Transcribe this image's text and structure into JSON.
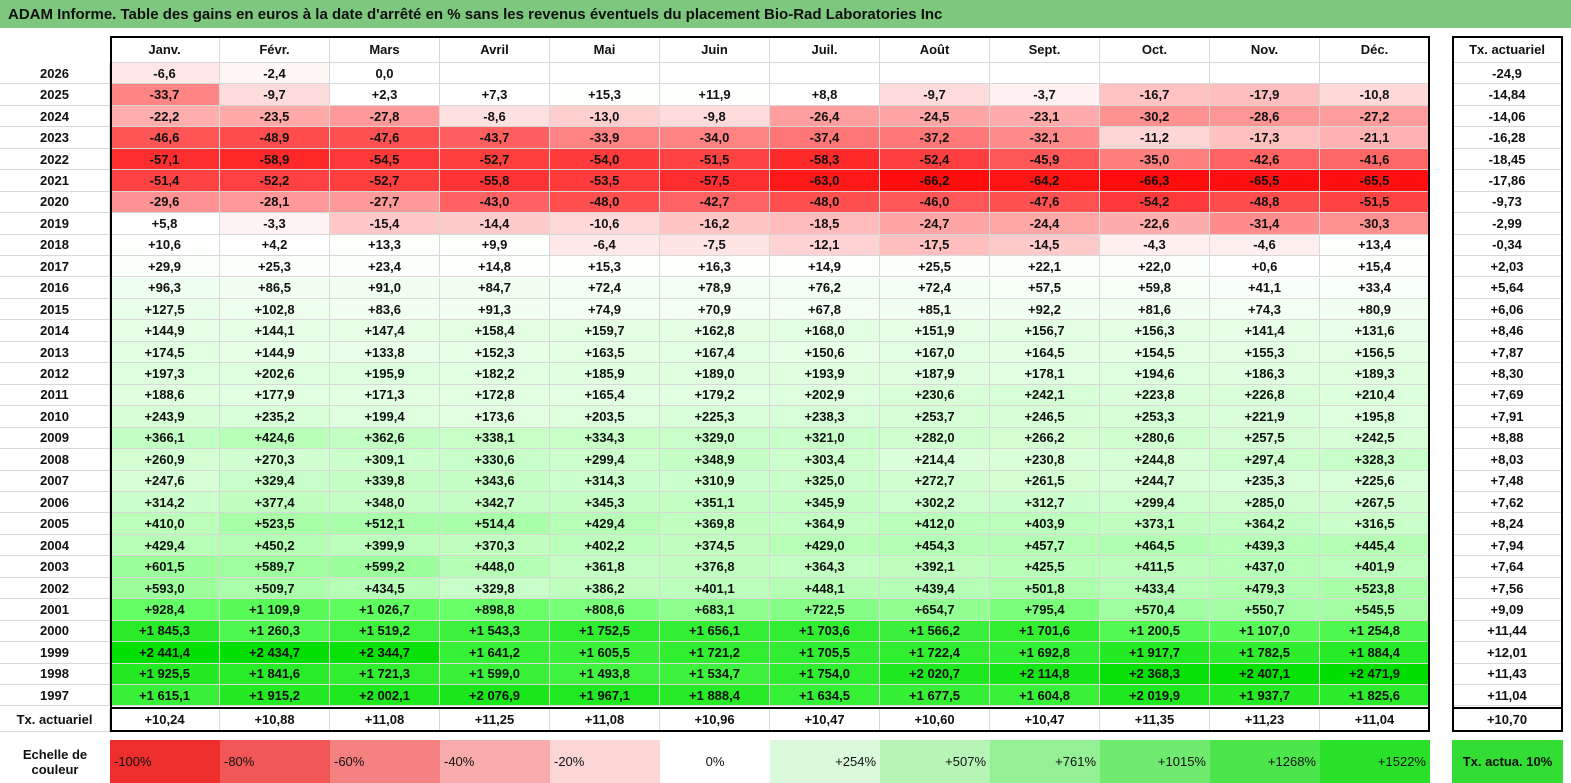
{
  "title": "ADAM Informe. Table des gains en euros à la date d'arrêté en % sans les revenus éventuels du placement Bio-Rad Laboratories Inc",
  "header": {
    "months": [
      "Janv.",
      "Févr.",
      "Mars",
      "Avril",
      "Mai",
      "Juin",
      "Juil.",
      "Août",
      "Sept.",
      "Oct.",
      "Nov.",
      "Déc."
    ],
    "rate": "Tx. actuariel"
  },
  "rows": [
    {
      "year": "2026",
      "cells": [
        "-6,6",
        "-2,4",
        "0,0",
        null,
        null,
        null,
        null,
        null,
        null,
        null,
        null,
        null
      ],
      "rate": "-24,9"
    },
    {
      "year": "2025",
      "cells": [
        "-33,7",
        "-9,7",
        "+2,3",
        "+7,3",
        "+15,3",
        "+11,9",
        "+8,8",
        "-9,7",
        "-3,7",
        "-16,7",
        "-17,9",
        "-10,8"
      ],
      "rate": "-14,84"
    },
    {
      "year": "2024",
      "cells": [
        "-22,2",
        "-23,5",
        "-27,8",
        "-8,6",
        "-13,0",
        "-9,8",
        "-26,4",
        "-24,5",
        "-23,1",
        "-30,2",
        "-28,6",
        "-27,2"
      ],
      "rate": "-14,06"
    },
    {
      "year": "2023",
      "cells": [
        "-46,6",
        "-48,9",
        "-47,6",
        "-43,7",
        "-33,9",
        "-34,0",
        "-37,4",
        "-37,2",
        "-32,1",
        "-11,2",
        "-17,3",
        "-21,1"
      ],
      "rate": "-16,28"
    },
    {
      "year": "2022",
      "cells": [
        "-57,1",
        "-58,9",
        "-54,5",
        "-52,7",
        "-54,0",
        "-51,5",
        "-58,3",
        "-52,4",
        "-45,9",
        "-35,0",
        "-42,6",
        "-41,6"
      ],
      "rate": "-18,45"
    },
    {
      "year": "2021",
      "cells": [
        "-51,4",
        "-52,2",
        "-52,7",
        "-55,8",
        "-53,5",
        "-57,5",
        "-63,0",
        "-66,2",
        "-64,2",
        "-66,3",
        "-65,5",
        "-65,5"
      ],
      "rate": "-17,86"
    },
    {
      "year": "2020",
      "cells": [
        "-29,6",
        "-28,1",
        "-27,7",
        "-43,0",
        "-48,0",
        "-42,7",
        "-48,0",
        "-46,0",
        "-47,6",
        "-54,2",
        "-48,8",
        "-51,5"
      ],
      "rate": "-9,73"
    },
    {
      "year": "2019",
      "cells": [
        "+5,8",
        "-3,3",
        "-15,4",
        "-14,4",
        "-10,6",
        "-16,2",
        "-18,5",
        "-24,7",
        "-24,4",
        "-22,6",
        "-31,4",
        "-30,3"
      ],
      "rate": "-2,99"
    },
    {
      "year": "2018",
      "cells": [
        "+10,6",
        "+4,2",
        "+13,3",
        "+9,9",
        "-6,4",
        "-7,5",
        "-12,1",
        "-17,5",
        "-14,5",
        "-4,3",
        "-4,6",
        "+13,4"
      ],
      "rate": "-0,34"
    },
    {
      "year": "2017",
      "cells": [
        "+29,9",
        "+25,3",
        "+23,4",
        "+14,8",
        "+15,3",
        "+16,3",
        "+14,9",
        "+25,5",
        "+22,1",
        "+22,0",
        "+0,6",
        "+15,4"
      ],
      "rate": "+2,03"
    },
    {
      "year": "2016",
      "cells": [
        "+96,3",
        "+86,5",
        "+91,0",
        "+84,7",
        "+72,4",
        "+78,9",
        "+76,2",
        "+72,4",
        "+57,5",
        "+59,8",
        "+41,1",
        "+33,4"
      ],
      "rate": "+5,64"
    },
    {
      "year": "2015",
      "cells": [
        "+127,5",
        "+102,8",
        "+83,6",
        "+91,3",
        "+74,9",
        "+70,9",
        "+67,8",
        "+85,1",
        "+92,2",
        "+81,6",
        "+74,3",
        "+80,9"
      ],
      "rate": "+6,06"
    },
    {
      "year": "2014",
      "cells": [
        "+144,9",
        "+144,1",
        "+147,4",
        "+158,4",
        "+159,7",
        "+162,8",
        "+168,0",
        "+151,9",
        "+156,7",
        "+156,3",
        "+141,4",
        "+131,6"
      ],
      "rate": "+8,46"
    },
    {
      "year": "2013",
      "cells": [
        "+174,5",
        "+144,9",
        "+133,8",
        "+152,3",
        "+163,5",
        "+167,4",
        "+150,6",
        "+167,0",
        "+164,5",
        "+154,5",
        "+155,3",
        "+156,5"
      ],
      "rate": "+7,87"
    },
    {
      "year": "2012",
      "cells": [
        "+197,3",
        "+202,6",
        "+195,9",
        "+182,2",
        "+185,9",
        "+189,0",
        "+193,9",
        "+187,9",
        "+178,1",
        "+194,6",
        "+186,3",
        "+189,3"
      ],
      "rate": "+8,30"
    },
    {
      "year": "2011",
      "cells": [
        "+188,6",
        "+177,9",
        "+171,3",
        "+172,8",
        "+165,4",
        "+179,2",
        "+202,9",
        "+230,6",
        "+242,1",
        "+223,8",
        "+226,8",
        "+210,4"
      ],
      "rate": "+7,69"
    },
    {
      "year": "2010",
      "cells": [
        "+243,9",
        "+235,2",
        "+199,4",
        "+173,6",
        "+203,5",
        "+225,3",
        "+238,3",
        "+253,7",
        "+246,5",
        "+253,3",
        "+221,9",
        "+195,8"
      ],
      "rate": "+7,91"
    },
    {
      "year": "2009",
      "cells": [
        "+366,1",
        "+424,6",
        "+362,6",
        "+338,1",
        "+334,3",
        "+329,0",
        "+321,0",
        "+282,0",
        "+266,2",
        "+280,6",
        "+257,5",
        "+242,5"
      ],
      "rate": "+8,88"
    },
    {
      "year": "2008",
      "cells": [
        "+260,9",
        "+270,3",
        "+309,1",
        "+330,6",
        "+299,4",
        "+348,9",
        "+303,4",
        "+214,4",
        "+230,8",
        "+244,8",
        "+297,4",
        "+328,3"
      ],
      "rate": "+8,03"
    },
    {
      "year": "2007",
      "cells": [
        "+247,6",
        "+329,4",
        "+339,8",
        "+343,6",
        "+314,3",
        "+310,9",
        "+325,0",
        "+272,7",
        "+261,5",
        "+244,7",
        "+235,3",
        "+225,6"
      ],
      "rate": "+7,48"
    },
    {
      "year": "2006",
      "cells": [
        "+314,2",
        "+377,4",
        "+348,0",
        "+342,7",
        "+345,3",
        "+351,1",
        "+345,9",
        "+302,2",
        "+312,7",
        "+299,4",
        "+285,0",
        "+267,5"
      ],
      "rate": "+7,62"
    },
    {
      "year": "2005",
      "cells": [
        "+410,0",
        "+523,5",
        "+512,1",
        "+514,4",
        "+429,4",
        "+369,8",
        "+364,9",
        "+412,0",
        "+403,9",
        "+373,1",
        "+364,2",
        "+316,5"
      ],
      "rate": "+8,24"
    },
    {
      "year": "2004",
      "cells": [
        "+429,4",
        "+450,2",
        "+399,9",
        "+370,3",
        "+402,2",
        "+374,5",
        "+429,0",
        "+454,3",
        "+457,7",
        "+464,5",
        "+439,3",
        "+445,4"
      ],
      "rate": "+7,94"
    },
    {
      "year": "2003",
      "cells": [
        "+601,5",
        "+589,7",
        "+599,2",
        "+448,0",
        "+361,8",
        "+376,8",
        "+364,3",
        "+392,1",
        "+425,5",
        "+411,5",
        "+437,0",
        "+401,9"
      ],
      "rate": "+7,64"
    },
    {
      "year": "2002",
      "cells": [
        "+593,0",
        "+509,7",
        "+434,5",
        "+329,8",
        "+386,2",
        "+401,1",
        "+448,1",
        "+439,4",
        "+501,8",
        "+433,4",
        "+479,3",
        "+523,8"
      ],
      "rate": "+7,56"
    },
    {
      "year": "2001",
      "cells": [
        "+928,4",
        "+1 109,9",
        "+1 026,7",
        "+898,8",
        "+808,6",
        "+683,1",
        "+722,5",
        "+654,7",
        "+795,4",
        "+570,4",
        "+550,7",
        "+545,5"
      ],
      "rate": "+9,09"
    },
    {
      "year": "2000",
      "cells": [
        "+1 845,3",
        "+1 260,3",
        "+1 519,2",
        "+1 543,3",
        "+1 752,5",
        "+1 656,1",
        "+1 703,6",
        "+1 566,2",
        "+1 701,6",
        "+1 200,5",
        "+1 107,0",
        "+1 254,8"
      ],
      "rate": "+11,44"
    },
    {
      "year": "1999",
      "cells": [
        "+2 441,4",
        "+2 434,7",
        "+2 344,7",
        "+1 641,2",
        "+1 605,5",
        "+1 721,2",
        "+1 705,5",
        "+1 722,4",
        "+1 692,8",
        "+1 917,7",
        "+1 782,5",
        "+1 884,4"
      ],
      "rate": "+12,01"
    },
    {
      "year": "1998",
      "cells": [
        "+1 925,5",
        "+1 841,6",
        "+1 721,3",
        "+1 599,0",
        "+1 493,8",
        "+1 534,7",
        "+1 754,0",
        "+2 020,7",
        "+2 114,8",
        "+2 368,3",
        "+2 407,1",
        "+2 471,9"
      ],
      "rate": "+11,43"
    },
    {
      "year": "1997",
      "cells": [
        "+1 615,1",
        "+1 915,2",
        "+2 002,1",
        "+2 076,9",
        "+1 967,1",
        "+1 888,4",
        "+1 634,5",
        "+1 677,5",
        "+1 604,8",
        "+2 019,9",
        "+1 937,7",
        "+1 825,6"
      ],
      "rate": "+11,04"
    }
  ],
  "footer": {
    "label": "Tx. actuariel",
    "cells": [
      "+10,24",
      "+10,88",
      "+11,08",
      "+11,25",
      "+11,08",
      "+10,96",
      "+10,47",
      "+10,60",
      "+10,47",
      "+11,35",
      "+11,23",
      "+11,04"
    ],
    "rate": "+10,70"
  },
  "legend": {
    "label": "Echelle de couleur",
    "steps": [
      "-100%",
      "-80%",
      "-60%",
      "-40%",
      "-20%",
      "0%",
      "+254%",
      "+507%",
      "+761%",
      "+1015%",
      "+1268%",
      "+1522%"
    ],
    "rate": "Tx. actua. 10%"
  }
}
